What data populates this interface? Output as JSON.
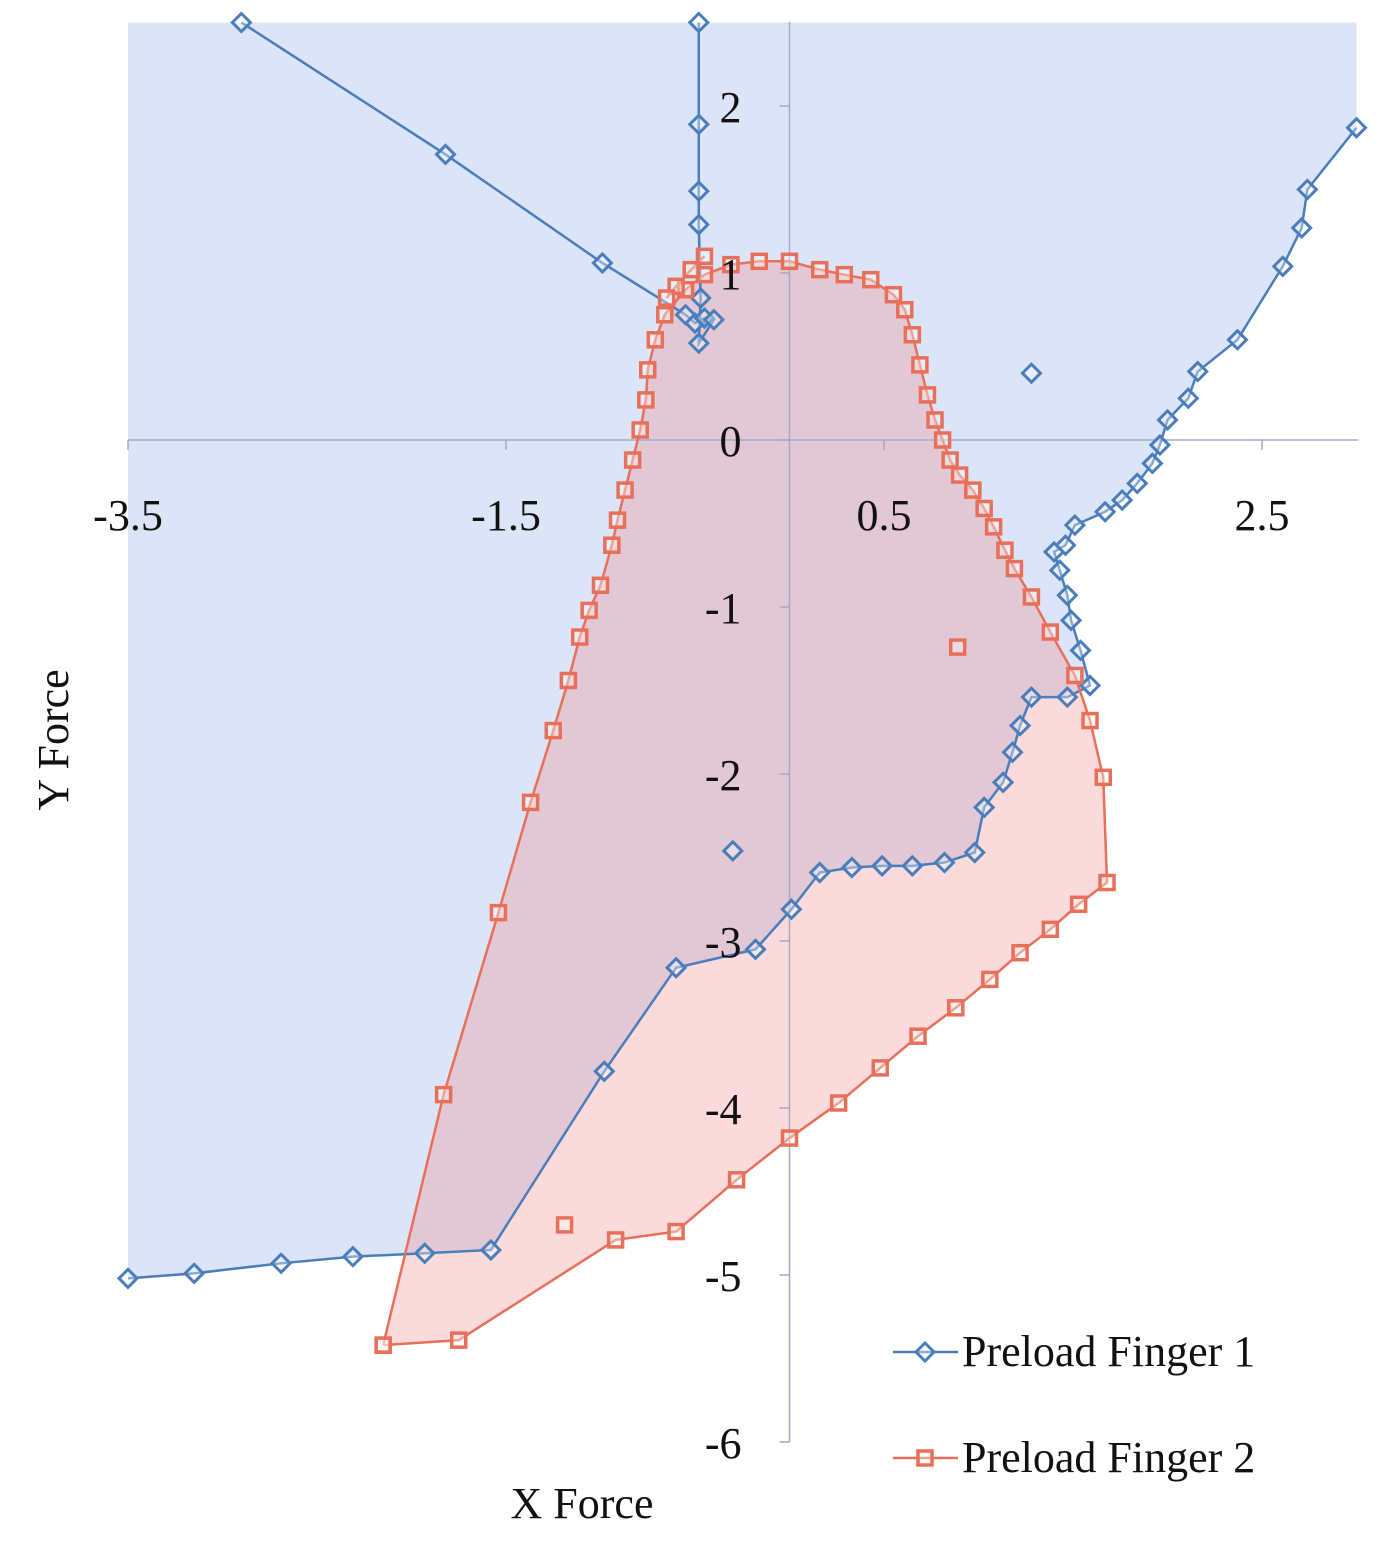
{
  "chart_data": {
    "type": "scatter",
    "x_label": "X Force",
    "y_label": "Y Force",
    "xlim": [
      -3.5,
      3
    ],
    "xticks": [
      -3.5,
      -1.5,
      0.5,
      2.5
    ],
    "ylim": [
      -6,
      2.5
    ],
    "yticks": [
      -6,
      -5,
      -4,
      -3,
      -2,
      -1,
      0,
      1,
      2
    ],
    "legend": "lower right",
    "series": [
      {
        "name": "Preload Finger 1",
        "color": "#4a7ebb",
        "marker": "diamond",
        "fill_color": "rgba(150,172,232,0.33)",
        "fill_to": "top",
        "x": [
          -2.9,
          -1.82,
          -0.99,
          -0.55,
          -0.5,
          -0.45,
          -0.4,
          -0.48,
          -0.47,
          -0.48,
          -0.48,
          -0.48,
          -0.48,
          null,
          -0.3,
          null,
          1.28,
          null,
          -3.5,
          -3.15,
          -2.69,
          -2.31,
          -1.93,
          -1.58,
          -0.98,
          -0.6,
          -0.18,
          0.01,
          0.16,
          0.33,
          0.49,
          0.65,
          0.82,
          0.98,
          1.03,
          1.13,
          1.18,
          1.22,
          1.28,
          1.47,
          1.59,
          1.54,
          1.49,
          1.47,
          1.43,
          1.4,
          1.46,
          1.51,
          1.67,
          1.76,
          1.84,
          1.92,
          1.96,
          2.0,
          2.11,
          2.16,
          2.37,
          2.61,
          2.71,
          2.74,
          3.0
        ],
        "values": [
          2.5,
          1.71,
          1.06,
          0.75,
          0.7,
          0.73,
          0.72,
          0.58,
          0.85,
          1.29,
          1.49,
          1.89,
          2.5,
          null,
          -2.46,
          null,
          0.4,
          null,
          -5.02,
          -4.99,
          -4.93,
          -4.89,
          -4.87,
          -4.85,
          -3.78,
          -3.16,
          -3.05,
          -2.81,
          -2.59,
          -2.56,
          -2.55,
          -2.55,
          -2.53,
          -2.47,
          -2.2,
          -2.05,
          -1.87,
          -1.71,
          -1.54,
          -1.54,
          -1.47,
          -1.26,
          -1.08,
          -0.93,
          -0.78,
          -0.67,
          -0.63,
          -0.51,
          -0.43,
          -0.36,
          -0.26,
          -0.14,
          -0.03,
          0.12,
          0.25,
          0.41,
          0.6,
          1.04,
          1.27,
          1.5,
          1.87
        ]
      },
      {
        "name": "Preload Finger 2",
        "color": "#e8705a",
        "marker": "square",
        "fill_color": "rgba(240,140,140,0.32)",
        "fill_to": "self",
        "x": [
          -2.15,
          -1.75,
          -0.92,
          -0.6,
          -0.28,
          0,
          0.26,
          0.48,
          0.68,
          0.88,
          1.06,
          1.22,
          1.38,
          1.53,
          1.68,
          1.66,
          1.59,
          1.51,
          1.38,
          1.28,
          1.19,
          1.14,
          1.08,
          1.03,
          0.97,
          0.9,
          0.85,
          0.81,
          0.77,
          0.73,
          0.69,
          0.65,
          0.61,
          0.55,
          0.43,
          0.29,
          0.16,
          0,
          -0.16,
          -0.31,
          -0.45,
          -0.55,
          -0.66,
          -0.71,
          -0.75,
          -0.76,
          -0.79,
          -0.83,
          -0.87,
          -0.91,
          -0.94,
          -1.0,
          -1.06,
          -1.11,
          -1.17,
          -1.25,
          -1.37,
          -1.54,
          -1.83,
          -2.15,
          null,
          -0.45,
          -0.52,
          -0.6,
          -0.65,
          null,
          0.89,
          null,
          -1.19
        ],
        "values": [
          -5.42,
          -5.39,
          -4.79,
          -4.74,
          -4.43,
          -4.18,
          -3.97,
          -3.76,
          -3.57,
          -3.4,
          -3.23,
          -3.07,
          -2.93,
          -2.78,
          -2.65,
          -2.02,
          -1.68,
          -1.41,
          -1.15,
          -0.94,
          -0.77,
          -0.66,
          -0.52,
          -0.41,
          -0.3,
          -0.21,
          -0.12,
          0,
          0.12,
          0.27,
          0.45,
          0.63,
          0.78,
          0.87,
          0.96,
          0.99,
          1.02,
          1.07,
          1.07,
          1.05,
          0.99,
          0.9,
          0.75,
          0.6,
          0.42,
          0.24,
          0.06,
          -0.12,
          -0.3,
          -0.48,
          -0.63,
          -0.87,
          -1.02,
          -1.18,
          -1.44,
          -1.74,
          -2.17,
          -2.83,
          -3.92,
          -5.42,
          null,
          1.1,
          1.02,
          0.92,
          0.85,
          null,
          -1.24,
          null,
          -4.7
        ]
      }
    ]
  }
}
